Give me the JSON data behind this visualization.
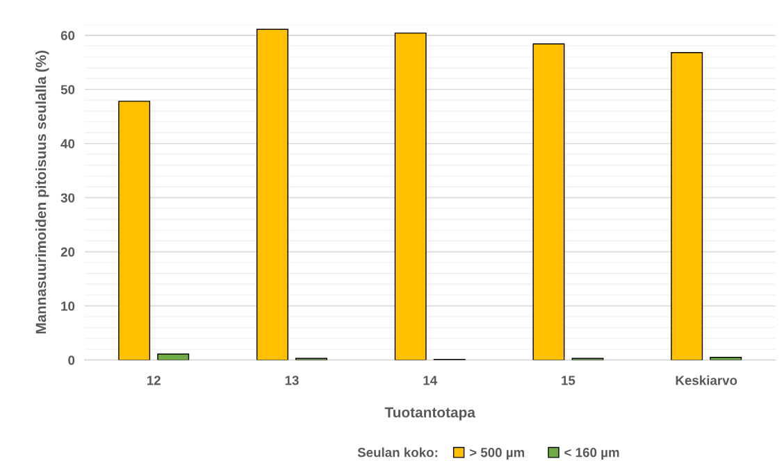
{
  "chart_data": {
    "type": "bar",
    "xlabel": "Tuotantotapa",
    "ylabel": "Mannasuurimoiden pitoisuus seulalla (%)",
    "legend_title": "Seulan koko:",
    "categories": [
      "12",
      "13",
      "14",
      "15",
      "Keskiarvo"
    ],
    "series": [
      {
        "name": "> 500 µm",
        "color": "#ffc000",
        "values": [
          47.8,
          61.1,
          60.4,
          58.4,
          56.8
        ]
      },
      {
        "name": "< 160 µm",
        "color": "#70ad47",
        "values": [
          1.1,
          0.3,
          0.1,
          0.3,
          0.5
        ]
      }
    ],
    "ylim": [
      0,
      62
    ],
    "yticks": [
      0,
      {
        "value": 2,
        "label": null
      },
      {
        "value": 4,
        "label": null
      },
      {
        "value": 6,
        "label": null
      },
      {
        "value": 8,
        "label": null
      },
      10,
      {
        "value": 12,
        "label": null
      },
      {
        "value": 14,
        "label": null
      },
      {
        "value": 16,
        "label": null
      },
      {
        "value": 18,
        "label": null
      },
      20,
      {
        "value": 22,
        "label": null
      },
      {
        "value": 24,
        "label": null
      },
      {
        "value": 26,
        "label": null
      },
      {
        "value": 28,
        "label": null
      },
      30,
      {
        "value": 32,
        "label": null
      },
      {
        "value": 34,
        "label": null
      },
      {
        "value": 36,
        "label": null
      },
      {
        "value": 38,
        "label": null
      },
      40,
      {
        "value": 42,
        "label": null
      },
      {
        "value": 44,
        "label": null
      },
      {
        "value": 46,
        "label": null
      },
      {
        "value": 48,
        "label": null
      },
      50,
      {
        "value": 52,
        "label": null
      },
      {
        "value": 54,
        "label": null
      },
      {
        "value": 56,
        "label": null
      },
      {
        "value": 58,
        "label": null
      },
      60,
      {
        "value": 62,
        "label": null
      }
    ],
    "grid": "y",
    "legend": "bottom"
  }
}
